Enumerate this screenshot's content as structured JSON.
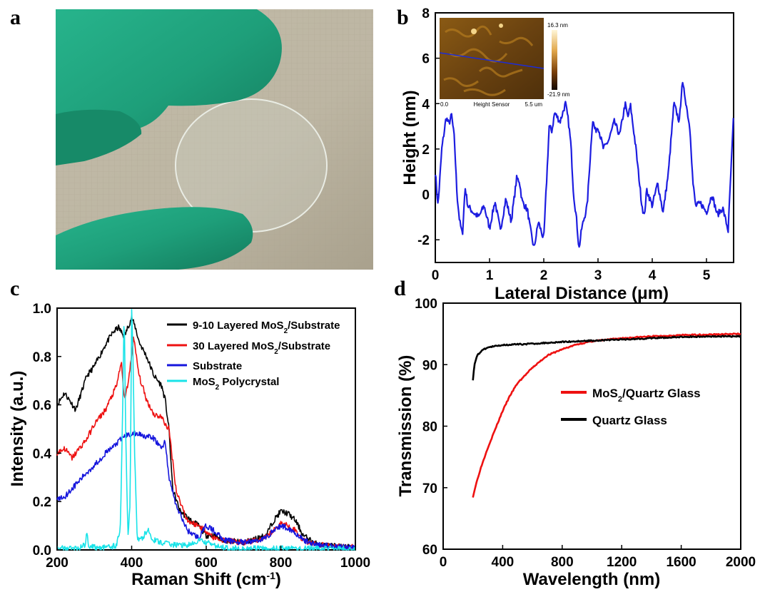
{
  "panels": {
    "a": "a",
    "b": "b",
    "c": "c",
    "d": "d"
  },
  "inset_b": {
    "scale_max": "16.3 nm",
    "scale_min": "-21.9 nm",
    "x_start": "0.0",
    "x_caption": "Height Sensor",
    "x_end": "5.5 um"
  },
  "colors": {
    "black": "#000000",
    "red": "#ee1111",
    "blue": "#1515dd",
    "cyan": "#19e3e8",
    "profile": "#1d1de0"
  },
  "chart_data": [
    {
      "id": "b",
      "type": "line",
      "xlabel": "Lateral Distance (μm)",
      "ylabel": "Height (nm)",
      "xlim": [
        0,
        5.5
      ],
      "ylim": [
        -3,
        8
      ],
      "xticks": [
        "0",
        "1",
        "2",
        "3",
        "4",
        "5"
      ],
      "yticks": [
        "-2",
        "0",
        "2",
        "4",
        "6",
        "8"
      ],
      "series": [
        {
          "color": "#1d1de0",
          "x": [
            0,
            0.05,
            0.12,
            0.2,
            0.25,
            0.3,
            0.35,
            0.4,
            0.45,
            0.5,
            0.55,
            0.6,
            0.7,
            0.8,
            0.9,
            1.0,
            1.1,
            1.2,
            1.3,
            1.4,
            1.5,
            1.55,
            1.6,
            1.7,
            1.75,
            1.82,
            1.9,
            2.0,
            2.1,
            2.15,
            2.2,
            2.3,
            2.4,
            2.45,
            2.5,
            2.55,
            2.6,
            2.65,
            2.7,
            2.8,
            2.9,
            2.95,
            3.0,
            3.1,
            3.2,
            3.3,
            3.4,
            3.5,
            3.55,
            3.6,
            3.7,
            3.8,
            3.85,
            3.9,
            4.0,
            4.1,
            4.2,
            4.3,
            4.4,
            4.5,
            4.55,
            4.6,
            4.7,
            4.75,
            4.8,
            4.9,
            5.0,
            5.1,
            5.2,
            5.3,
            5.4,
            5.5
          ],
          "y": [
            1.0,
            -0.5,
            2.0,
            3.4,
            3.1,
            3.5,
            2.5,
            0.0,
            -1.2,
            -1.8,
            0.3,
            -0.5,
            -0.8,
            -1.0,
            -0.5,
            -1.5,
            -0.3,
            -1.6,
            -0.2,
            -1.2,
            0.7,
            0.6,
            -0.3,
            -0.7,
            -1.5,
            -2.4,
            -1.2,
            -2.0,
            3.0,
            2.8,
            3.6,
            3.2,
            4.0,
            3.3,
            2.2,
            0.0,
            -1.0,
            -2.4,
            -1.5,
            -0.5,
            3.3,
            2.8,
            3.0,
            2.0,
            2.4,
            3.2,
            2.6,
            4.0,
            3.4,
            3.9,
            2.0,
            -0.3,
            -1.0,
            0.2,
            -0.5,
            0.5,
            -0.8,
            1.0,
            4.0,
            3.2,
            4.9,
            4.4,
            2.8,
            0.5,
            -0.5,
            -0.4,
            -0.8,
            0.0,
            -0.9,
            -0.6,
            -1.6,
            3.5
          ]
        }
      ]
    },
    {
      "id": "c",
      "type": "line",
      "xlabel": "Raman Shift (cm⁻¹)",
      "ylabel": "Intensity (a.u.)",
      "xlim": [
        200,
        1000
      ],
      "ylim": [
        0,
        1.0
      ],
      "xticks": [
        "200",
        "400",
        "600",
        "800",
        "1000"
      ],
      "yticks": [
        "0.0",
        "0.2",
        "0.4",
        "0.6",
        "0.8",
        "1.0"
      ],
      "series": [
        {
          "name": "9-10 Layered MoS2/Substrate",
          "color": "#000000",
          "x": [
            200,
            220,
            250,
            280,
            300,
            330,
            350,
            365,
            380,
            392,
            400,
            410,
            420,
            440,
            460,
            480,
            490,
            500,
            510,
            530,
            560,
            580,
            600,
            620,
            650,
            700,
            740,
            760,
            780,
            800,
            820,
            840,
            860,
            900,
            950,
            1000
          ],
          "y": [
            0.6,
            0.65,
            0.58,
            0.72,
            0.76,
            0.85,
            0.9,
            0.92,
            0.88,
            0.93,
            0.96,
            0.92,
            0.86,
            0.8,
            0.72,
            0.68,
            0.62,
            0.5,
            0.25,
            0.16,
            0.12,
            0.1,
            0.06,
            0.06,
            0.04,
            0.03,
            0.05,
            0.06,
            0.12,
            0.16,
            0.15,
            0.12,
            0.06,
            0.02,
            0.015,
            0.01
          ]
        },
        {
          "name": "30 Layered MoS2/Substrate",
          "color": "#ee1111",
          "x": [
            200,
            220,
            240,
            260,
            280,
            300,
            330,
            360,
            372,
            380,
            392,
            405,
            420,
            440,
            460,
            480,
            490,
            500,
            520,
            550,
            580,
            600,
            620,
            650,
            700,
            740,
            760,
            780,
            800,
            820,
            840,
            860,
            900,
            950,
            1000
          ],
          "y": [
            0.4,
            0.42,
            0.38,
            0.42,
            0.46,
            0.52,
            0.58,
            0.68,
            0.78,
            0.62,
            0.7,
            0.88,
            0.72,
            0.62,
            0.56,
            0.55,
            0.52,
            0.5,
            0.24,
            0.12,
            0.1,
            0.08,
            0.05,
            0.04,
            0.03,
            0.04,
            0.05,
            0.08,
            0.11,
            0.1,
            0.08,
            0.04,
            0.02,
            0.015,
            0.01
          ]
        },
        {
          "name": "Substrate",
          "color": "#1515dd",
          "x": [
            200,
            220,
            250,
            280,
            300,
            330,
            360,
            380,
            400,
            420,
            440,
            460,
            480,
            490,
            500,
            520,
            550,
            580,
            600,
            620,
            650,
            700,
            740,
            760,
            780,
            800,
            820,
            840,
            860,
            900,
            950,
            1000
          ],
          "y": [
            0.21,
            0.22,
            0.27,
            0.32,
            0.35,
            0.4,
            0.44,
            0.47,
            0.48,
            0.48,
            0.47,
            0.46,
            0.42,
            0.45,
            0.3,
            0.18,
            0.08,
            0.05,
            0.1,
            0.08,
            0.04,
            0.03,
            0.04,
            0.05,
            0.08,
            0.1,
            0.09,
            0.07,
            0.04,
            0.02,
            0.015,
            0.01
          ]
        },
        {
          "name": "MoS2 Polycrystal",
          "color": "#19e3e8",
          "x": [
            200,
            260,
            275,
            280,
            285,
            300,
            340,
            360,
            370,
            376,
            380,
            384,
            390,
            396,
            400,
            403,
            408,
            415,
            430,
            445,
            450,
            460,
            480,
            520,
            560,
            580,
            600,
            640,
            700,
            780,
            820,
            900,
            1000
          ],
          "y": [
            0.005,
            0.008,
            0.02,
            0.07,
            0.02,
            0.01,
            0.01,
            0.02,
            0.1,
            0.6,
            0.99,
            0.5,
            0.05,
            0.2,
            0.99,
            0.85,
            0.4,
            0.04,
            0.05,
            0.09,
            0.06,
            0.04,
            0.03,
            0.02,
            0.02,
            0.04,
            0.03,
            0.01,
            0.005,
            0.005,
            0.005,
            0.005,
            0.005
          ]
        }
      ]
    },
    {
      "id": "d",
      "type": "line",
      "xlabel": "Wavelength (nm)",
      "ylabel": "Transmission (%)",
      "xlim": [
        0,
        2000
      ],
      "ylim": [
        60,
        100
      ],
      "xticks": [
        "0",
        "400",
        "800",
        "1200",
        "1600",
        "2000"
      ],
      "yticks": [
        "60",
        "70",
        "80",
        "90",
        "100"
      ],
      "series": [
        {
          "name": "MoS2/Quartz Glass",
          "color": "#ee1111",
          "x": [
            200,
            220,
            250,
            300,
            350,
            400,
            450,
            500,
            600,
            700,
            800,
            900,
            1000,
            1200,
            1400,
            1600,
            1800,
            2000
          ],
          "y": [
            68.5,
            70.5,
            73,
            76.5,
            79.5,
            82.5,
            85,
            87,
            89.5,
            91.5,
            92.5,
            93.3,
            93.8,
            94.3,
            94.6,
            94.8,
            94.9,
            95
          ]
        },
        {
          "name": "Quartz Glass",
          "color": "#000000",
          "x": [
            200,
            205,
            215,
            230,
            260,
            300,
            350,
            400,
            500,
            600,
            800,
            1000,
            1200,
            1400,
            1600,
            1800,
            2000
          ],
          "y": [
            87.5,
            89,
            90.5,
            91.5,
            92.3,
            92.8,
            93,
            93.2,
            93.3,
            93.4,
            93.7,
            93.9,
            94.1,
            94.3,
            94.5,
            94.6,
            94.6
          ]
        }
      ]
    }
  ]
}
